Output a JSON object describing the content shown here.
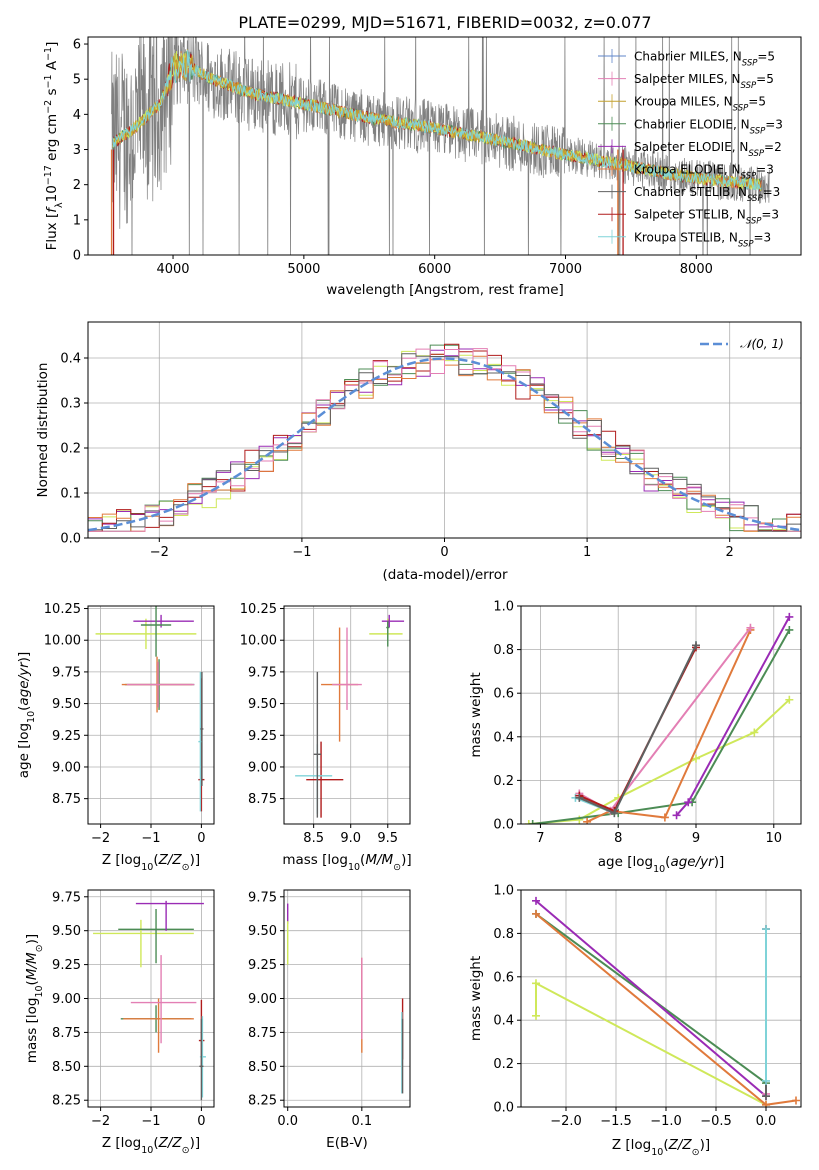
{
  "figure_title": "PLATE=0299, MJD=51671, FIBERID=0032, z=0.077",
  "colors": {
    "data": "#808080",
    "chabrier_miles": "#5f86c9",
    "salpeter_miles": "#e37fb4",
    "kroupa_miles": "#c4a12f",
    "chabrier_elodie": "#4c8c55",
    "salpeter_elodie": "#9a2bb5",
    "kroupa_elodie": "#e07a3c",
    "chabrier_stelib": "#606060",
    "salpeter_stelib": "#b01c1c",
    "kroupa_stelib": "#7fd3d8",
    "lime": "#cfe85a",
    "normal": "#5b8ed6"
  },
  "chart_data": [
    {
      "id": "spectrum",
      "type": "line",
      "xlabel": "wavelength [Angstrom, rest frame]",
      "xlim": [
        3350,
        8800
      ],
      "ylim": [
        0,
        6.2
      ],
      "xticks": [
        "4000",
        "5000",
        "6000",
        "7000",
        "8000"
      ],
      "yticks": [
        "0",
        "1",
        "2",
        "3",
        "4",
        "5",
        "6"
      ],
      "legend_position": "upper right",
      "legend": [
        {
          "name": "Chabrier MILES, N",
          "sub": "SSP",
          "suffix": "=5",
          "color": "#5f86c9"
        },
        {
          "name": "Salpeter MILES, N",
          "sub": "SSP",
          "suffix": "=5",
          "color": "#e37fb4"
        },
        {
          "name": "Kroupa MILES, N",
          "sub": "SSP",
          "suffix": "=5",
          "color": "#c4a12f"
        },
        {
          "name": "Chabrier ELODIE, N",
          "sub": "SSP",
          "suffix": "=3",
          "color": "#4c8c55"
        },
        {
          "name": "Salpeter ELODIE, N",
          "sub": "SSP",
          "suffix": "=2",
          "color": "#9a2bb5"
        },
        {
          "name": "Kroupa ELODIE, N",
          "sub": "SSP",
          "suffix": "=3",
          "color": "#e07a3c"
        },
        {
          "name": "Chabrier STELIB, N",
          "sub": "SSP",
          "suffix": "=3",
          "color": "#606060"
        },
        {
          "name": "Salpeter STELIB, N",
          "sub": "SSP",
          "suffix": "=3",
          "color": "#b01c1c"
        },
        {
          "name": "Kroupa STELIB, N",
          "sub": "SSP",
          "suffix": "=3",
          "color": "#7fd3d8"
        }
      ],
      "continuum_points": [
        [
          3550,
          3.2
        ],
        [
          3700,
          3.6
        ],
        [
          3900,
          4.3
        ],
        [
          4000,
          5.3
        ],
        [
          4100,
          5.4
        ],
        [
          4300,
          5.0
        ],
        [
          4600,
          4.6
        ],
        [
          5000,
          4.3
        ],
        [
          5500,
          3.9
        ],
        [
          6000,
          3.6
        ],
        [
          6500,
          3.25
        ],
        [
          7000,
          2.85
        ],
        [
          7400,
          2.6
        ],
        [
          7800,
          2.3
        ],
        [
          8200,
          2.1
        ],
        [
          8500,
          2.0
        ]
      ]
    },
    {
      "id": "residual-hist",
      "type": "histogram",
      "xlabel": "(data-model)/error",
      "ylabel": "Normed distribution",
      "xlim": [
        -2.5,
        2.5
      ],
      "ylim": [
        0,
        0.48
      ],
      "xticks": [
        "−2",
        "−1",
        "0",
        "1",
        "2"
      ],
      "yticks": [
        "0.0",
        "0.1",
        "0.2",
        "0.3",
        "0.4"
      ],
      "bin_width": 0.1,
      "legend": [
        {
          "name": "𝒩(0, 1)",
          "color": "#5b8ed6"
        }
      ]
    },
    {
      "id": "age-vs-z",
      "type": "errorbar",
      "xlabel": "Z [log10(Z/Z⊙)]",
      "ylabel": "age  [log10(age/yr)]",
      "xlim": [
        -2.25,
        0.25
      ],
      "ylim": [
        8.55,
        10.27
      ],
      "xticks": [
        "−2",
        "−1",
        "0"
      ],
      "yticks": [
        "8.75",
        "9.00",
        "9.25",
        "9.50",
        "9.75",
        "10.00",
        "10.25"
      ],
      "points": [
        {
          "x": -0.84,
          "y": 9.65,
          "xerr": [
            0.68,
            0.7
          ],
          "yerr": [
            0.2,
            0.2
          ],
          "color": "#4c8c55"
        },
        {
          "x": -0.88,
          "y": 9.65,
          "xerr": [
            0.7,
            0.7
          ],
          "yerr": [
            0.22,
            0.22
          ],
          "color": "#e07a3c"
        },
        {
          "x": -0.86,
          "y": 9.65,
          "xerr": [
            0.62,
            0.72
          ],
          "yerr": [
            0.18,
            0.18
          ],
          "color": "#e37fb4"
        },
        {
          "x": -1.1,
          "y": 10.05,
          "xerr": [
            1.0,
            1.0
          ],
          "yerr": [
            0.12,
            0.12
          ],
          "color": "#cfe85a"
        },
        {
          "x": -0.8,
          "y": 10.15,
          "xerr": [
            0.55,
            0.65
          ],
          "yerr": [
            0.05,
            0.05
          ],
          "color": "#9a2bb5"
        },
        {
          "x": -0.9,
          "y": 10.12,
          "xerr": [
            0.3,
            0.3
          ],
          "yerr": [
            0.25,
            0.25
          ],
          "color": "#4c8c55"
        },
        {
          "x": 0.0,
          "y": 8.9,
          "xerr": [
            0.06,
            0.06
          ],
          "yerr": [
            0.25,
            0.8
          ],
          "color": "#b01c1c"
        },
        {
          "x": -0.02,
          "y": 9.2,
          "xerr": [
            0.04,
            0.04
          ],
          "yerr": [
            0.55,
            0.55
          ],
          "color": "#7fd3d8"
        },
        {
          "x": 0.01,
          "y": 9.3,
          "xerr": [
            0.03,
            0.03
          ],
          "yerr": [
            0.45,
            0.45
          ],
          "color": "#606060"
        }
      ]
    },
    {
      "id": "age-vs-mass",
      "type": "errorbar",
      "xlabel": "mass [log10(M/M⊙)]",
      "xlim": [
        8.1,
        9.8
      ],
      "ylim": [
        8.55,
        10.27
      ],
      "xticks": [
        "8.5",
        "9.0",
        "9.5"
      ],
      "yticks": [
        "8.75",
        "9.00",
        "9.25",
        "9.50",
        "9.75",
        "10.00",
        "10.25"
      ],
      "points": [
        {
          "x": 8.85,
          "y": 9.65,
          "xerr": [
            0.25,
            0.25
          ],
          "yerr": [
            0.45,
            0.45
          ],
          "color": "#e07a3c"
        },
        {
          "x": 8.95,
          "y": 9.65,
          "xerr": [
            0.2,
            0.2
          ],
          "yerr": [
            0.2,
            0.45
          ],
          "color": "#e37fb4"
        },
        {
          "x": 9.5,
          "y": 10.05,
          "xerr": [
            0.25,
            0.2
          ],
          "yerr": [
            0.05,
            0.12
          ],
          "color": "#cfe85a"
        },
        {
          "x": 9.52,
          "y": 10.15,
          "xerr": [
            0.1,
            0.2
          ],
          "yerr": [
            0.05,
            0.05
          ],
          "color": "#9a2bb5"
        },
        {
          "x": 9.5,
          "y": 10.1,
          "xerr": [
            0.02,
            0.02
          ],
          "yerr": [
            0.15,
            0.05
          ],
          "color": "#4c8c55"
        },
        {
          "x": 8.6,
          "y": 8.9,
          "xerr": [
            0.2,
            0.3
          ],
          "yerr": [
            0.3,
            0.3
          ],
          "color": "#b01c1c"
        },
        {
          "x": 8.55,
          "y": 8.93,
          "xerr": [
            0.3,
            0.2
          ],
          "yerr": [
            0.3,
            0.25
          ],
          "color": "#7fd3d8"
        },
        {
          "x": 8.55,
          "y": 9.1,
          "xerr": [
            0.05,
            0.05
          ],
          "yerr": [
            0.5,
            0.65
          ],
          "color": "#606060"
        }
      ]
    },
    {
      "id": "mass-weight-vs-age",
      "type": "line",
      "xlabel": "age  [log10(age/yr)]",
      "ylabel": "mass weight",
      "xlim": [
        6.75,
        10.35
      ],
      "ylim": [
        0,
        1.0
      ],
      "xticks": [
        "7",
        "8",
        "9",
        "10"
      ],
      "yticks": [
        "0.0",
        "0.2",
        "0.4",
        "0.6",
        "0.8",
        "1.0"
      ],
      "series": [
        {
          "color": "#cfe85a",
          "x": [
            6.85,
            7.5,
            8.0,
            9.0,
            9.75,
            10.2
          ],
          "y": [
            0.0,
            0.02,
            0.12,
            0.3,
            0.42,
            0.57
          ]
        },
        {
          "color": "#4c8c55",
          "x": [
            6.9,
            8.0,
            8.95,
            10.2
          ],
          "y": [
            0.0,
            0.05,
            0.1,
            0.89
          ]
        },
        {
          "color": "#9a2bb5",
          "x": [
            8.75,
            8.9,
            10.2
          ],
          "y": [
            0.04,
            0.1,
            0.95
          ]
        },
        {
          "color": "#e07a3c",
          "x": [
            7.6,
            7.9,
            8.6,
            9.7
          ],
          "y": [
            0.01,
            0.06,
            0.03,
            0.89
          ]
        },
        {
          "color": "#e37fb4",
          "x": [
            7.5,
            7.9,
            9.7
          ],
          "y": [
            0.14,
            0.06,
            0.9
          ]
        },
        {
          "color": "#7fd3d8",
          "x": [
            7.45,
            7.95,
            9.0
          ],
          "y": [
            0.12,
            0.05,
            0.82
          ]
        },
        {
          "color": "#b01c1c",
          "x": [
            7.5,
            7.95,
            9.0
          ],
          "y": [
            0.13,
            0.06,
            0.81
          ]
        },
        {
          "color": "#606060",
          "x": [
            7.5,
            7.95,
            9.0
          ],
          "y": [
            0.12,
            0.05,
            0.82
          ]
        }
      ]
    },
    {
      "id": "mass-vs-z",
      "type": "errorbar",
      "xlabel": "Z [log10(Z/Z⊙)]",
      "ylabel": "mass [log10(M/M⊙)]",
      "xlim": [
        -2.25,
        0.25
      ],
      "ylim": [
        8.2,
        9.8
      ],
      "xticks": [
        "−2",
        "−1",
        "0"
      ],
      "yticks": [
        "8.25",
        "8.50",
        "8.75",
        "9.00",
        "9.25",
        "9.50",
        "9.75"
      ],
      "points": [
        {
          "x": -0.9,
          "y": 8.85,
          "xerr": [
            0.7,
            0.7
          ],
          "yerr": [
            0.1,
            0.1
          ],
          "color": "#4c8c55"
        },
        {
          "x": -0.85,
          "y": 8.85,
          "xerr": [
            0.7,
            0.7
          ],
          "yerr": [
            0.25,
            0.15
          ],
          "color": "#e07a3c"
        },
        {
          "x": -0.8,
          "y": 8.97,
          "xerr": [
            0.6,
            0.7
          ],
          "yerr": [
            0.3,
            0.35
          ],
          "color": "#e37fb4"
        },
        {
          "x": -1.2,
          "y": 9.48,
          "xerr": [
            0.95,
            1.05
          ],
          "yerr": [
            0.25,
            0.1
          ],
          "color": "#cfe85a"
        },
        {
          "x": -0.9,
          "y": 9.51,
          "xerr": [
            0.75,
            0.75
          ],
          "yerr": [
            0.25,
            0.15
          ],
          "color": "#4c8c55"
        },
        {
          "x": -0.7,
          "y": 9.7,
          "xerr": [
            0.6,
            0.75
          ],
          "yerr": [
            0.2,
            0.02
          ],
          "color": "#9a2bb5"
        },
        {
          "x": 0.0,
          "y": 8.69,
          "xerr": [
            0.05,
            0.06
          ],
          "yerr": [
            0.2,
            0.3
          ],
          "color": "#b01c1c"
        },
        {
          "x": 0.02,
          "y": 8.57,
          "xerr": [
            0.05,
            0.07
          ],
          "yerr": [
            0.3,
            0.3
          ],
          "color": "#7fd3d8"
        },
        {
          "x": 0.0,
          "y": 8.5,
          "xerr": [
            0.04,
            0.04
          ],
          "yerr": [
            0.25,
            0.35
          ],
          "color": "#606060"
        }
      ]
    },
    {
      "id": "ebv-vs-mass",
      "type": "errorbar",
      "xlabel": "E(B-V)",
      "xlim": [
        -0.005,
        0.165
      ],
      "ylim": [
        8.2,
        9.8
      ],
      "xticks": [
        "0.0",
        "0.1"
      ],
      "yticks": [
        "8.25",
        "8.50",
        "8.75",
        "9.00",
        "9.25",
        "9.50",
        "9.75"
      ],
      "points": [
        {
          "x": 0.0,
          "y": 9.6,
          "xerr": [
            0.0,
            0.0
          ],
          "yerr": [
            0.05,
            0.1
          ],
          "color": "#9a2bb5"
        },
        {
          "x": 0.0,
          "y": 9.45,
          "xerr": [
            0.0,
            0.0
          ],
          "yerr": [
            0.2,
            0.12
          ],
          "color": "#cfe85a"
        },
        {
          "x": 0.1,
          "y": 8.95,
          "xerr": [
            0.0,
            0.0
          ],
          "yerr": [
            0.35,
            0.35
          ],
          "color": "#e07a3c"
        },
        {
          "x": 0.1,
          "y": 9.0,
          "xerr": [
            0.0,
            0.0
          ],
          "yerr": [
            0.3,
            0.3
          ],
          "color": "#e37fb4"
        },
        {
          "x": 0.155,
          "y": 8.75,
          "xerr": [
            0.0,
            0.0
          ],
          "yerr": [
            0.2,
            0.25
          ],
          "color": "#b01c1c"
        },
        {
          "x": 0.154,
          "y": 8.6,
          "xerr": [
            0.0,
            0.0
          ],
          "yerr": [
            0.3,
            0.3
          ],
          "color": "#7fd3d8"
        },
        {
          "x": 0.155,
          "y": 8.55,
          "xerr": [
            0.0,
            0.0
          ],
          "yerr": [
            0.25,
            0.3
          ],
          "color": "#606060"
        }
      ]
    },
    {
      "id": "mass-weight-vs-z",
      "type": "line",
      "xlabel": "Z [log10(Z/Z⊙)]",
      "ylabel": "mass weight",
      "xlim": [
        -2.45,
        0.35
      ],
      "ylim": [
        0,
        1.0
      ],
      "xticks": [
        "−2.0",
        "−1.5",
        "−1.0",
        "−0.5",
        "0.0"
      ],
      "yticks": [
        "0.0",
        "0.2",
        "0.4",
        "0.6",
        "0.8",
        "1.0"
      ],
      "series": [
        {
          "color": "#cfe85a",
          "x": [
            -2.3,
            -2.3,
            0.0
          ],
          "y": [
            0.42,
            0.57,
            0.01
          ]
        },
        {
          "color": "#4c8c55",
          "x": [
            -2.3,
            0.0
          ],
          "y": [
            0.89,
            0.11
          ]
        },
        {
          "color": "#9a2bb5",
          "x": [
            -2.3,
            0.0
          ],
          "y": [
            0.95,
            0.05
          ]
        },
        {
          "color": "#e07a3c",
          "x": [
            -2.3,
            0.0,
            0.3
          ],
          "y": [
            0.89,
            0.01,
            0.03
          ]
        },
        {
          "color": "#e37fb4",
          "x": [
            0.0,
            0.0
          ],
          "y": [
            0.06,
            0.82
          ]
        },
        {
          "color": "#606060",
          "x": [
            0.0,
            0.0
          ],
          "y": [
            0.05,
            0.82
          ]
        },
        {
          "color": "#7fd3d8",
          "x": [
            0.0,
            0.0
          ],
          "y": [
            0.12,
            0.82
          ]
        }
      ]
    }
  ]
}
